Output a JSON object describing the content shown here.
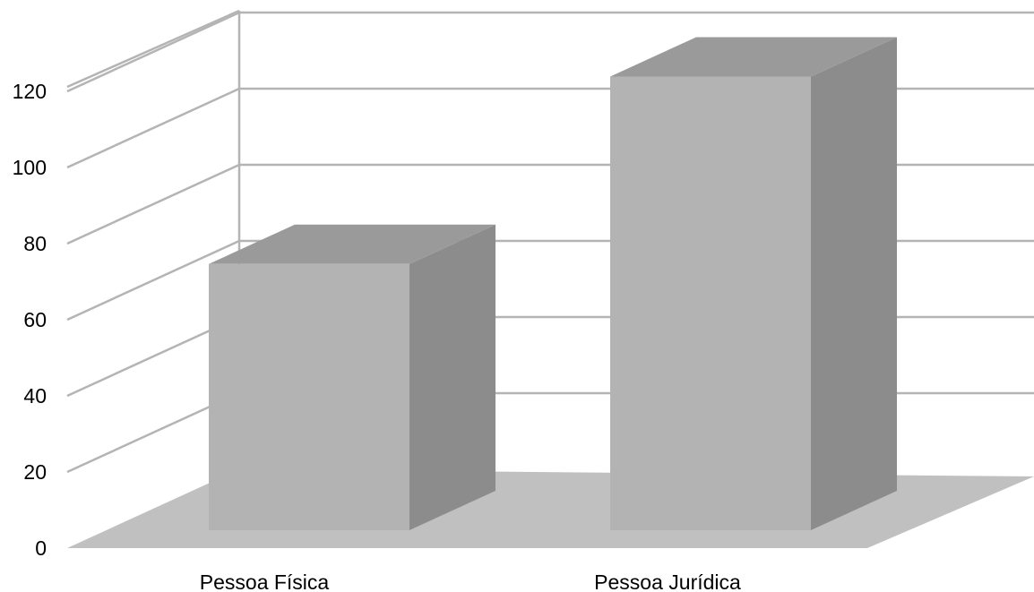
{
  "chart_data": {
    "type": "bar",
    "style": "3d-column",
    "categories": [
      "Pessoa Física",
      "Pessoa Jurídica"
    ],
    "values": [
      71,
      121
    ],
    "ylim": [
      0,
      120
    ],
    "yticks": [
      0,
      20,
      40,
      60,
      80,
      100,
      120
    ],
    "grid": true,
    "legend": "none",
    "colors": {
      "bar_front": "#b3b3b3",
      "bar_side": "#8c8c8c",
      "bar_top": "#9a9a9a",
      "floor": "#c0c0c0",
      "grid": "#b4b4b4"
    }
  }
}
